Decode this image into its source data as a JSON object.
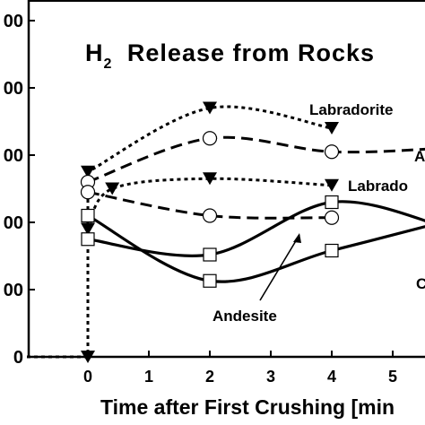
{
  "chart_data": {
    "type": "line",
    "title_main": "H",
    "title_sub": "2",
    "title_rest": " Release from Rocks",
    "xlabel": "Time after First Crushing [min",
    "x_ticks": [
      "0",
      "1",
      "2",
      "3",
      "4",
      "5"
    ],
    "y_ticks": [
      "00",
      "00",
      "00",
      "00",
      "00",
      "0"
    ],
    "xlim": [
      -1.0,
      5.8
    ],
    "ylim": [
      0,
      5.0
    ],
    "series": [
      {
        "name": "Labradorite",
        "label_text": "Labradorite",
        "style": "dotted",
        "marker": "triangle",
        "points": [
          [
            -1.0,
            0
          ],
          [
            0,
            0
          ],
          [
            0,
            2.75
          ],
          [
            2,
            3.7
          ],
          [
            4,
            3.4
          ]
        ]
      },
      {
        "name": "A",
        "label_text": "A",
        "style": "dashed",
        "marker": "circle",
        "points": [
          [
            0,
            2.6
          ],
          [
            2,
            3.25
          ],
          [
            4,
            3.05
          ],
          [
            5.8,
            3.1
          ]
        ]
      },
      {
        "name": "Labrado",
        "label_text": "Labrado",
        "style": "dotted",
        "marker": "triangle",
        "points": [
          [
            0,
            1.9
          ],
          [
            0.4,
            2.5
          ],
          [
            2,
            2.65
          ],
          [
            4,
            2.55
          ]
        ]
      },
      {
        "name": "",
        "label_text": "",
        "style": "dashed",
        "marker": "circle",
        "points": [
          [
            0,
            2.45
          ],
          [
            2,
            2.1
          ],
          [
            4,
            2.07
          ]
        ]
      },
      {
        "name": "Andesite",
        "label_text": "Andesite",
        "style": "solid",
        "marker": "square",
        "points": [
          [
            0,
            2.1
          ],
          [
            2,
            1.13
          ],
          [
            4,
            1.58
          ],
          [
            5.8,
            2.0
          ]
        ]
      },
      {
        "name": "C",
        "label_text": "C",
        "style": "solid",
        "marker": "square",
        "points": [
          [
            0,
            1.75
          ],
          [
            2,
            1.52
          ],
          [
            4,
            2.3
          ],
          [
            5.8,
            1.95
          ]
        ]
      }
    ]
  }
}
